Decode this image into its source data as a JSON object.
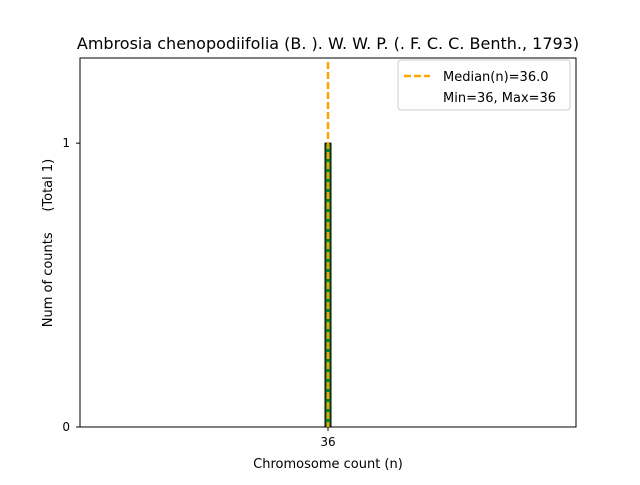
{
  "chart_data": {
    "type": "bar",
    "title": "Ambrosia chenopodiifolia (B. ). W. W. P. (. F. C. C. Benth., 1793)",
    "xlabel": "Chromosome count (n)",
    "ylabel": "Num of counts     (Total 1)",
    "categories": [
      "36"
    ],
    "values": [
      1
    ],
    "xlim": [
      18,
      54
    ],
    "ylim": [
      0,
      1.3
    ],
    "xticks": [
      36
    ],
    "xtick_labels": [
      "36"
    ],
    "yticks": [
      0,
      1
    ],
    "ytick_labels": [
      "0",
      "1"
    ],
    "median": 36.0,
    "min": 36,
    "max": 36,
    "legend": {
      "placement": "top-right",
      "entries": [
        "Median(n)=36.0",
        "Min=36, Max=36"
      ]
    },
    "colors": {
      "bar_fill": "#0b7a2a",
      "bar_edge": "#000000",
      "median_line": "#ffa500"
    },
    "grid": false
  }
}
